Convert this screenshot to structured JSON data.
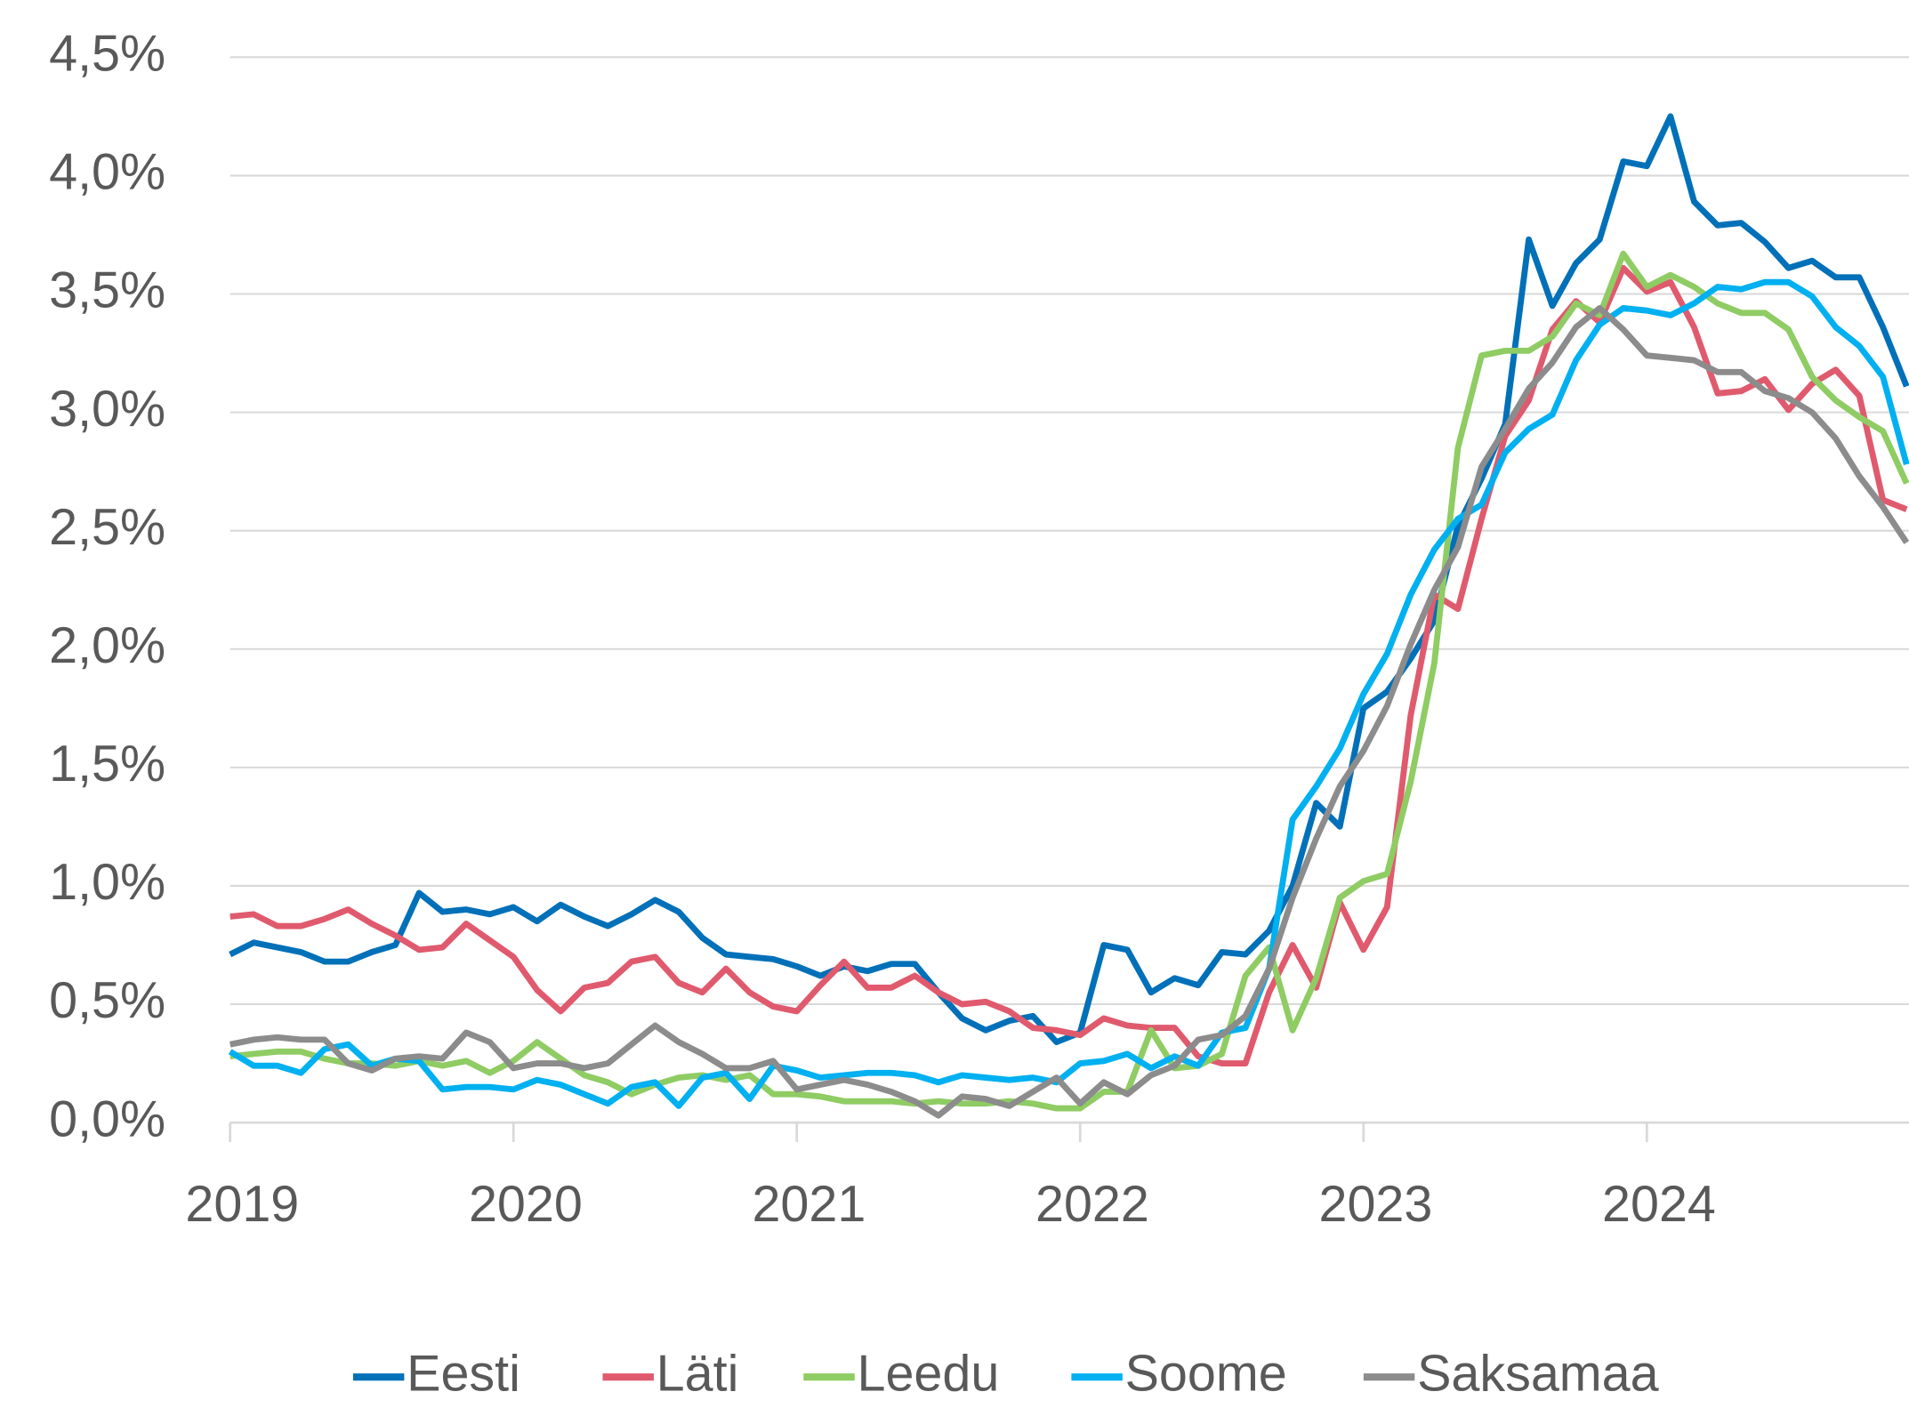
{
  "chart_data": {
    "type": "line",
    "categories": [
      "2019",
      null,
      null,
      null,
      null,
      null,
      null,
      null,
      null,
      null,
      null,
      null,
      "2020",
      null,
      null,
      null,
      null,
      null,
      null,
      null,
      null,
      null,
      null,
      null,
      "2021",
      null,
      null,
      null,
      null,
      null,
      null,
      null,
      null,
      null,
      null,
      null,
      "2022",
      null,
      null,
      null,
      null,
      null,
      null,
      null,
      null,
      null,
      null,
      null,
      "2023",
      null,
      null,
      null,
      null,
      null,
      null,
      null,
      null,
      null,
      null,
      null,
      "2024",
      null,
      null,
      null,
      null,
      null,
      null,
      null,
      null,
      null,
      null,
      null
    ],
    "series": [
      {
        "name": "Eesti",
        "color": "#0070b8",
        "values": [
          0.71,
          0.76,
          0.74,
          0.72,
          0.68,
          0.68,
          0.72,
          0.75,
          0.97,
          0.89,
          0.9,
          0.88,
          0.91,
          0.85,
          0.92,
          0.87,
          0.83,
          0.88,
          0.94,
          0.89,
          0.78,
          0.71,
          0.7,
          0.69,
          0.66,
          0.62,
          0.66,
          0.64,
          0.67,
          0.67,
          0.55,
          0.44,
          0.39,
          0.43,
          0.45,
          0.34,
          0.38,
          0.75,
          0.73,
          0.55,
          0.61,
          0.58,
          0.72,
          0.71,
          0.81,
          1.0,
          1.35,
          1.25,
          1.75,
          1.82,
          1.96,
          2.12,
          2.52,
          2.72,
          2.95,
          3.73,
          3.45,
          3.63,
          3.73,
          4.06,
          4.04,
          4.25,
          3.89,
          3.79,
          3.8,
          3.72,
          3.61,
          3.64,
          3.57,
          3.57,
          3.36,
          3.11
        ]
      },
      {
        "name": "Läti",
        "color": "#e05a6e",
        "values": [
          0.87,
          0.88,
          0.83,
          0.83,
          0.86,
          0.9,
          0.84,
          0.79,
          0.73,
          0.74,
          0.84,
          0.77,
          0.7,
          0.56,
          0.47,
          0.57,
          0.59,
          0.68,
          0.7,
          0.59,
          0.55,
          0.65,
          0.55,
          0.49,
          0.47,
          0.58,
          0.68,
          0.57,
          0.57,
          0.62,
          0.55,
          0.5,
          0.51,
          0.47,
          0.4,
          0.39,
          0.37,
          0.44,
          0.41,
          0.4,
          0.4,
          0.28,
          0.25,
          0.25,
          0.55,
          0.75,
          0.57,
          0.93,
          0.73,
          0.91,
          1.72,
          2.23,
          2.17,
          2.55,
          2.9,
          3.05,
          3.35,
          3.47,
          3.38,
          3.61,
          3.51,
          3.55,
          3.36,
          3.08,
          3.09,
          3.14,
          3.01,
          3.12,
          3.18,
          3.07,
          2.63,
          2.59
        ]
      },
      {
        "name": "Leedu",
        "color": "#8fcc63",
        "values": [
          0.28,
          0.29,
          0.3,
          0.3,
          0.27,
          0.25,
          0.25,
          0.24,
          0.26,
          0.24,
          0.26,
          0.21,
          0.26,
          0.34,
          0.27,
          0.2,
          0.17,
          0.12,
          0.16,
          0.19,
          0.2,
          0.18,
          0.2,
          0.12,
          0.12,
          0.11,
          0.09,
          0.09,
          0.09,
          0.08,
          0.09,
          0.08,
          0.08,
          0.09,
          0.08,
          0.06,
          0.06,
          0.13,
          0.13,
          0.39,
          0.23,
          0.24,
          0.29,
          0.62,
          0.74,
          0.39,
          0.61,
          0.95,
          1.02,
          1.05,
          1.44,
          1.94,
          2.85,
          3.24,
          3.26,
          3.26,
          3.32,
          3.46,
          3.41,
          3.67,
          3.53,
          3.58,
          3.53,
          3.46,
          3.42,
          3.42,
          3.35,
          3.15,
          3.05,
          2.98,
          2.92,
          2.7
        ]
      },
      {
        "name": "Soome",
        "color": "#00b0f0",
        "values": [
          0.3,
          0.24,
          0.24,
          0.21,
          0.31,
          0.33,
          0.24,
          0.27,
          0.26,
          0.14,
          0.15,
          0.15,
          0.14,
          0.18,
          0.16,
          0.12,
          0.08,
          0.15,
          0.17,
          0.07,
          0.19,
          0.21,
          0.1,
          0.24,
          0.22,
          0.19,
          0.2,
          0.21,
          0.21,
          0.2,
          0.17,
          0.2,
          0.19,
          0.18,
          0.19,
          0.17,
          0.25,
          0.26,
          0.29,
          0.23,
          0.28,
          0.24,
          0.38,
          0.4,
          0.65,
          1.28,
          1.42,
          1.58,
          1.81,
          1.98,
          2.23,
          2.42,
          2.55,
          2.61,
          2.83,
          2.93,
          2.99,
          3.22,
          3.37,
          3.44,
          3.43,
          3.41,
          3.46,
          3.53,
          3.52,
          3.55,
          3.55,
          3.49,
          3.36,
          3.28,
          3.15,
          2.78
        ]
      },
      {
        "name": "Saksamaa",
        "color": "#8c8c8c",
        "values": [
          0.33,
          0.35,
          0.36,
          0.35,
          0.35,
          0.25,
          0.22,
          0.27,
          0.28,
          0.27,
          0.38,
          0.34,
          0.23,
          0.25,
          0.25,
          0.23,
          0.25,
          0.33,
          0.41,
          0.34,
          0.29,
          0.23,
          0.23,
          0.26,
          0.14,
          0.16,
          0.18,
          0.16,
          0.13,
          0.09,
          0.03,
          0.11,
          0.1,
          0.07,
          0.13,
          0.19,
          0.08,
          0.17,
          0.12,
          0.2,
          0.24,
          0.35,
          0.37,
          0.45,
          0.65,
          0.95,
          1.2,
          1.42,
          1.57,
          1.76,
          2.02,
          2.25,
          2.43,
          2.77,
          2.93,
          3.1,
          3.21,
          3.36,
          3.44,
          3.35,
          3.24,
          3.23,
          3.22,
          3.17,
          3.17,
          3.09,
          3.06,
          3.0,
          2.89,
          2.73,
          2.6,
          2.45
        ]
      }
    ],
    "ylim": [
      0,
      4.5
    ],
    "yticks": [
      {
        "value": 0,
        "label": "0,0%"
      },
      {
        "value": 0.5,
        "label": "0,5%"
      },
      {
        "value": 1,
        "label": "1,0%"
      },
      {
        "value": 1.5,
        "label": "1,5%"
      },
      {
        "value": 2,
        "label": "2,0%"
      },
      {
        "value": 2.5,
        "label": "2,5%"
      },
      {
        "value": 3,
        "label": "3,0%"
      },
      {
        "value": 3.5,
        "label": "3,5%"
      },
      {
        "value": 4,
        "label": "4,0%"
      },
      {
        "value": 4.5,
        "label": "4,5%"
      }
    ],
    "grid": true,
    "legend": "bottom"
  }
}
